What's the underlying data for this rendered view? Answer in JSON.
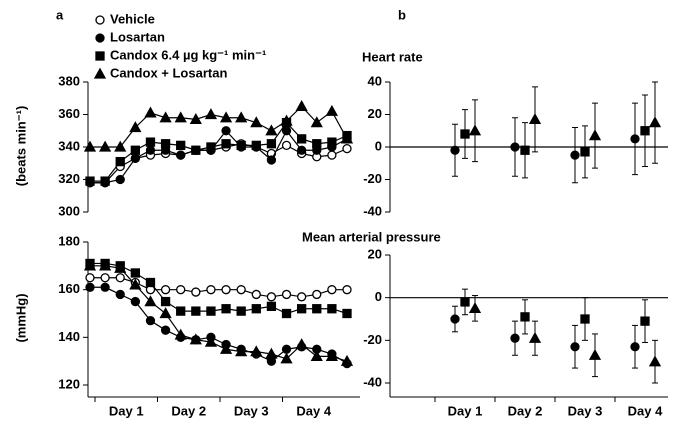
{
  "panels": [
    "a",
    "b"
  ],
  "chart_data": [
    {
      "type": "line",
      "y_label": "(beats min⁻¹)",
      "ylim": [
        300,
        380
      ],
      "yticks": [
        300,
        320,
        340,
        360,
        380
      ],
      "series": [
        {
          "name": "Vehicle",
          "marker": "circle",
          "fill": "#ffffff",
          "color": "#000000",
          "values": [
            318,
            318,
            328,
            333,
            335,
            336,
            335,
            338,
            338,
            340,
            342,
            340,
            336,
            341,
            336,
            334,
            335,
            339
          ]
        },
        {
          "name": "Losartan",
          "marker": "circle",
          "fill": "#000000",
          "color": "#000000",
          "values": [
            318,
            318,
            320,
            333,
            338,
            338,
            335,
            338,
            338,
            350,
            340,
            340,
            332,
            350,
            338,
            338,
            340,
            345
          ]
        },
        {
          "name": "Candox 6.4 µg kg⁻¹ min⁻¹",
          "marker": "square",
          "fill": "#000000",
          "color": "#000000",
          "values": [
            319,
            319,
            331,
            338,
            343,
            342,
            341,
            338,
            340,
            342,
            341,
            341,
            342,
            355,
            345,
            342,
            343,
            347
          ]
        },
        {
          "name": "Candox + Losartan",
          "marker": "triangle",
          "fill": "#000000",
          "color": "#000000",
          "values": [
            340,
            340,
            340,
            352,
            361,
            358,
            358,
            357,
            360,
            358,
            358,
            355,
            350,
            356,
            365,
            355,
            362,
            345
          ]
        }
      ]
    },
    {
      "type": "line",
      "y_label": "(mmHg)",
      "ylim": [
        120,
        180
      ],
      "yticks": [
        120,
        140,
        160,
        180
      ],
      "x_labels": [
        "Day 1",
        "Day 2",
        "Day 3",
        "Day 4"
      ],
      "series": [
        {
          "marker": "circle",
          "fill": "#ffffff",
          "color": "#000000",
          "values": [
            165,
            165,
            165,
            163,
            160,
            160,
            160,
            159,
            160,
            160,
            160,
            158,
            157,
            158,
            157,
            158,
            160,
            160
          ]
        },
        {
          "marker": "circle",
          "fill": "#000000",
          "color": "#000000",
          "values": [
            161,
            161,
            158,
            155,
            147,
            143,
            140,
            139,
            140,
            137,
            135,
            133,
            130,
            135,
            136,
            135,
            133,
            129
          ]
        },
        {
          "marker": "square",
          "fill": "#000000",
          "color": "#000000",
          "values": [
            171,
            171,
            170,
            167,
            163,
            155,
            151,
            151,
            151,
            152,
            151,
            152,
            153,
            150,
            152,
            152,
            152,
            150
          ]
        },
        {
          "marker": "triangle",
          "fill": "#000000",
          "color": "#000000",
          "values": [
            170,
            170,
            169,
            162,
            155,
            150,
            141,
            139,
            138,
            135,
            134,
            134,
            133,
            131,
            137,
            132,
            132,
            130
          ]
        }
      ]
    },
    {
      "type": "errorbar",
      "title": "Heart rate",
      "ylim": [
        -40,
        40
      ],
      "yticks": [
        -40,
        -20,
        0,
        20,
        40
      ],
      "series": [
        {
          "marker": "circle",
          "fill": "#000000",
          "color": "#000000",
          "values": [
            -2,
            0,
            -5,
            5
          ],
          "errors": [
            16,
            18,
            17,
            22
          ]
        },
        {
          "marker": "square",
          "fill": "#000000",
          "color": "#000000",
          "values": [
            8,
            -2,
            -3,
            10
          ],
          "errors": [
            15,
            17,
            16,
            22
          ]
        },
        {
          "marker": "triangle",
          "fill": "#000000",
          "color": "#000000",
          "values": [
            10,
            17,
            7,
            15
          ],
          "errors": [
            19,
            20,
            20,
            25
          ]
        }
      ]
    },
    {
      "type": "errorbar",
      "title": "Mean arterial pressure",
      "ylim": [
        -40,
        20
      ],
      "yticks": [
        -40,
        -20,
        0,
        20
      ],
      "categories": [
        "Day 1",
        "Day 2",
        "Day 3",
        "Day 4"
      ],
      "series": [
        {
          "marker": "circle",
          "fill": "#000000",
          "color": "#000000",
          "values": [
            -10,
            -19,
            -23,
            -23
          ],
          "errors": [
            6,
            8,
            10,
            10
          ]
        },
        {
          "marker": "square",
          "fill": "#000000",
          "color": "#000000",
          "values": [
            -2,
            -9,
            -10,
            -11
          ],
          "errors": [
            6,
            8,
            10,
            10
          ]
        },
        {
          "marker": "triangle",
          "fill": "#000000",
          "color": "#000000",
          "values": [
            -5,
            -19,
            -27,
            -30
          ],
          "errors": [
            6,
            8,
            10,
            10
          ]
        }
      ]
    }
  ]
}
